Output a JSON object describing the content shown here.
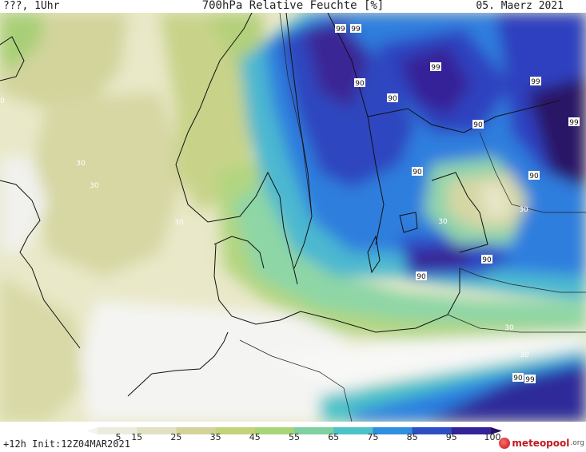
{
  "header": {
    "left": "???, 1Uhr",
    "title": "700hPa Relative Feuchte [%]",
    "date": "05. Maerz 2021"
  },
  "footer": {
    "run_info": "+12h Init:12Z04MAR2021",
    "logo_text": "meteopool",
    "logo_tld": ".org"
  },
  "colorbar": {
    "ticks": [
      "5",
      "15",
      "25",
      "35",
      "45",
      "55",
      "65",
      "75",
      "85",
      "95",
      "100"
    ],
    "colors": [
      "#f4f4f4",
      "#ecebdd",
      "#e2e1c1",
      "#d3d49a",
      "#c2d37a",
      "#a6d678",
      "#7fd0a0",
      "#4bc3c9",
      "#2f8fe0",
      "#2d4fc6",
      "#32239a",
      "#2a0f66"
    ]
  },
  "map": {
    "contour_labels": [
      {
        "text": "99"
      },
      {
        "text": "99"
      },
      {
        "text": "99"
      },
      {
        "text": "90"
      },
      {
        "text": "90"
      },
      {
        "text": "99"
      },
      {
        "text": "90"
      },
      {
        "text": "99"
      },
      {
        "text": "90"
      },
      {
        "text": "90"
      },
      {
        "text": "30"
      },
      {
        "text": "30"
      },
      {
        "text": "30"
      },
      {
        "text": "30"
      },
      {
        "text": "30"
      },
      {
        "text": "90"
      },
      {
        "text": "90"
      },
      {
        "text": "30"
      },
      {
        "text": "30"
      },
      {
        "text": "90"
      },
      {
        "text": "99"
      },
      {
        "text": "0"
      }
    ]
  }
}
